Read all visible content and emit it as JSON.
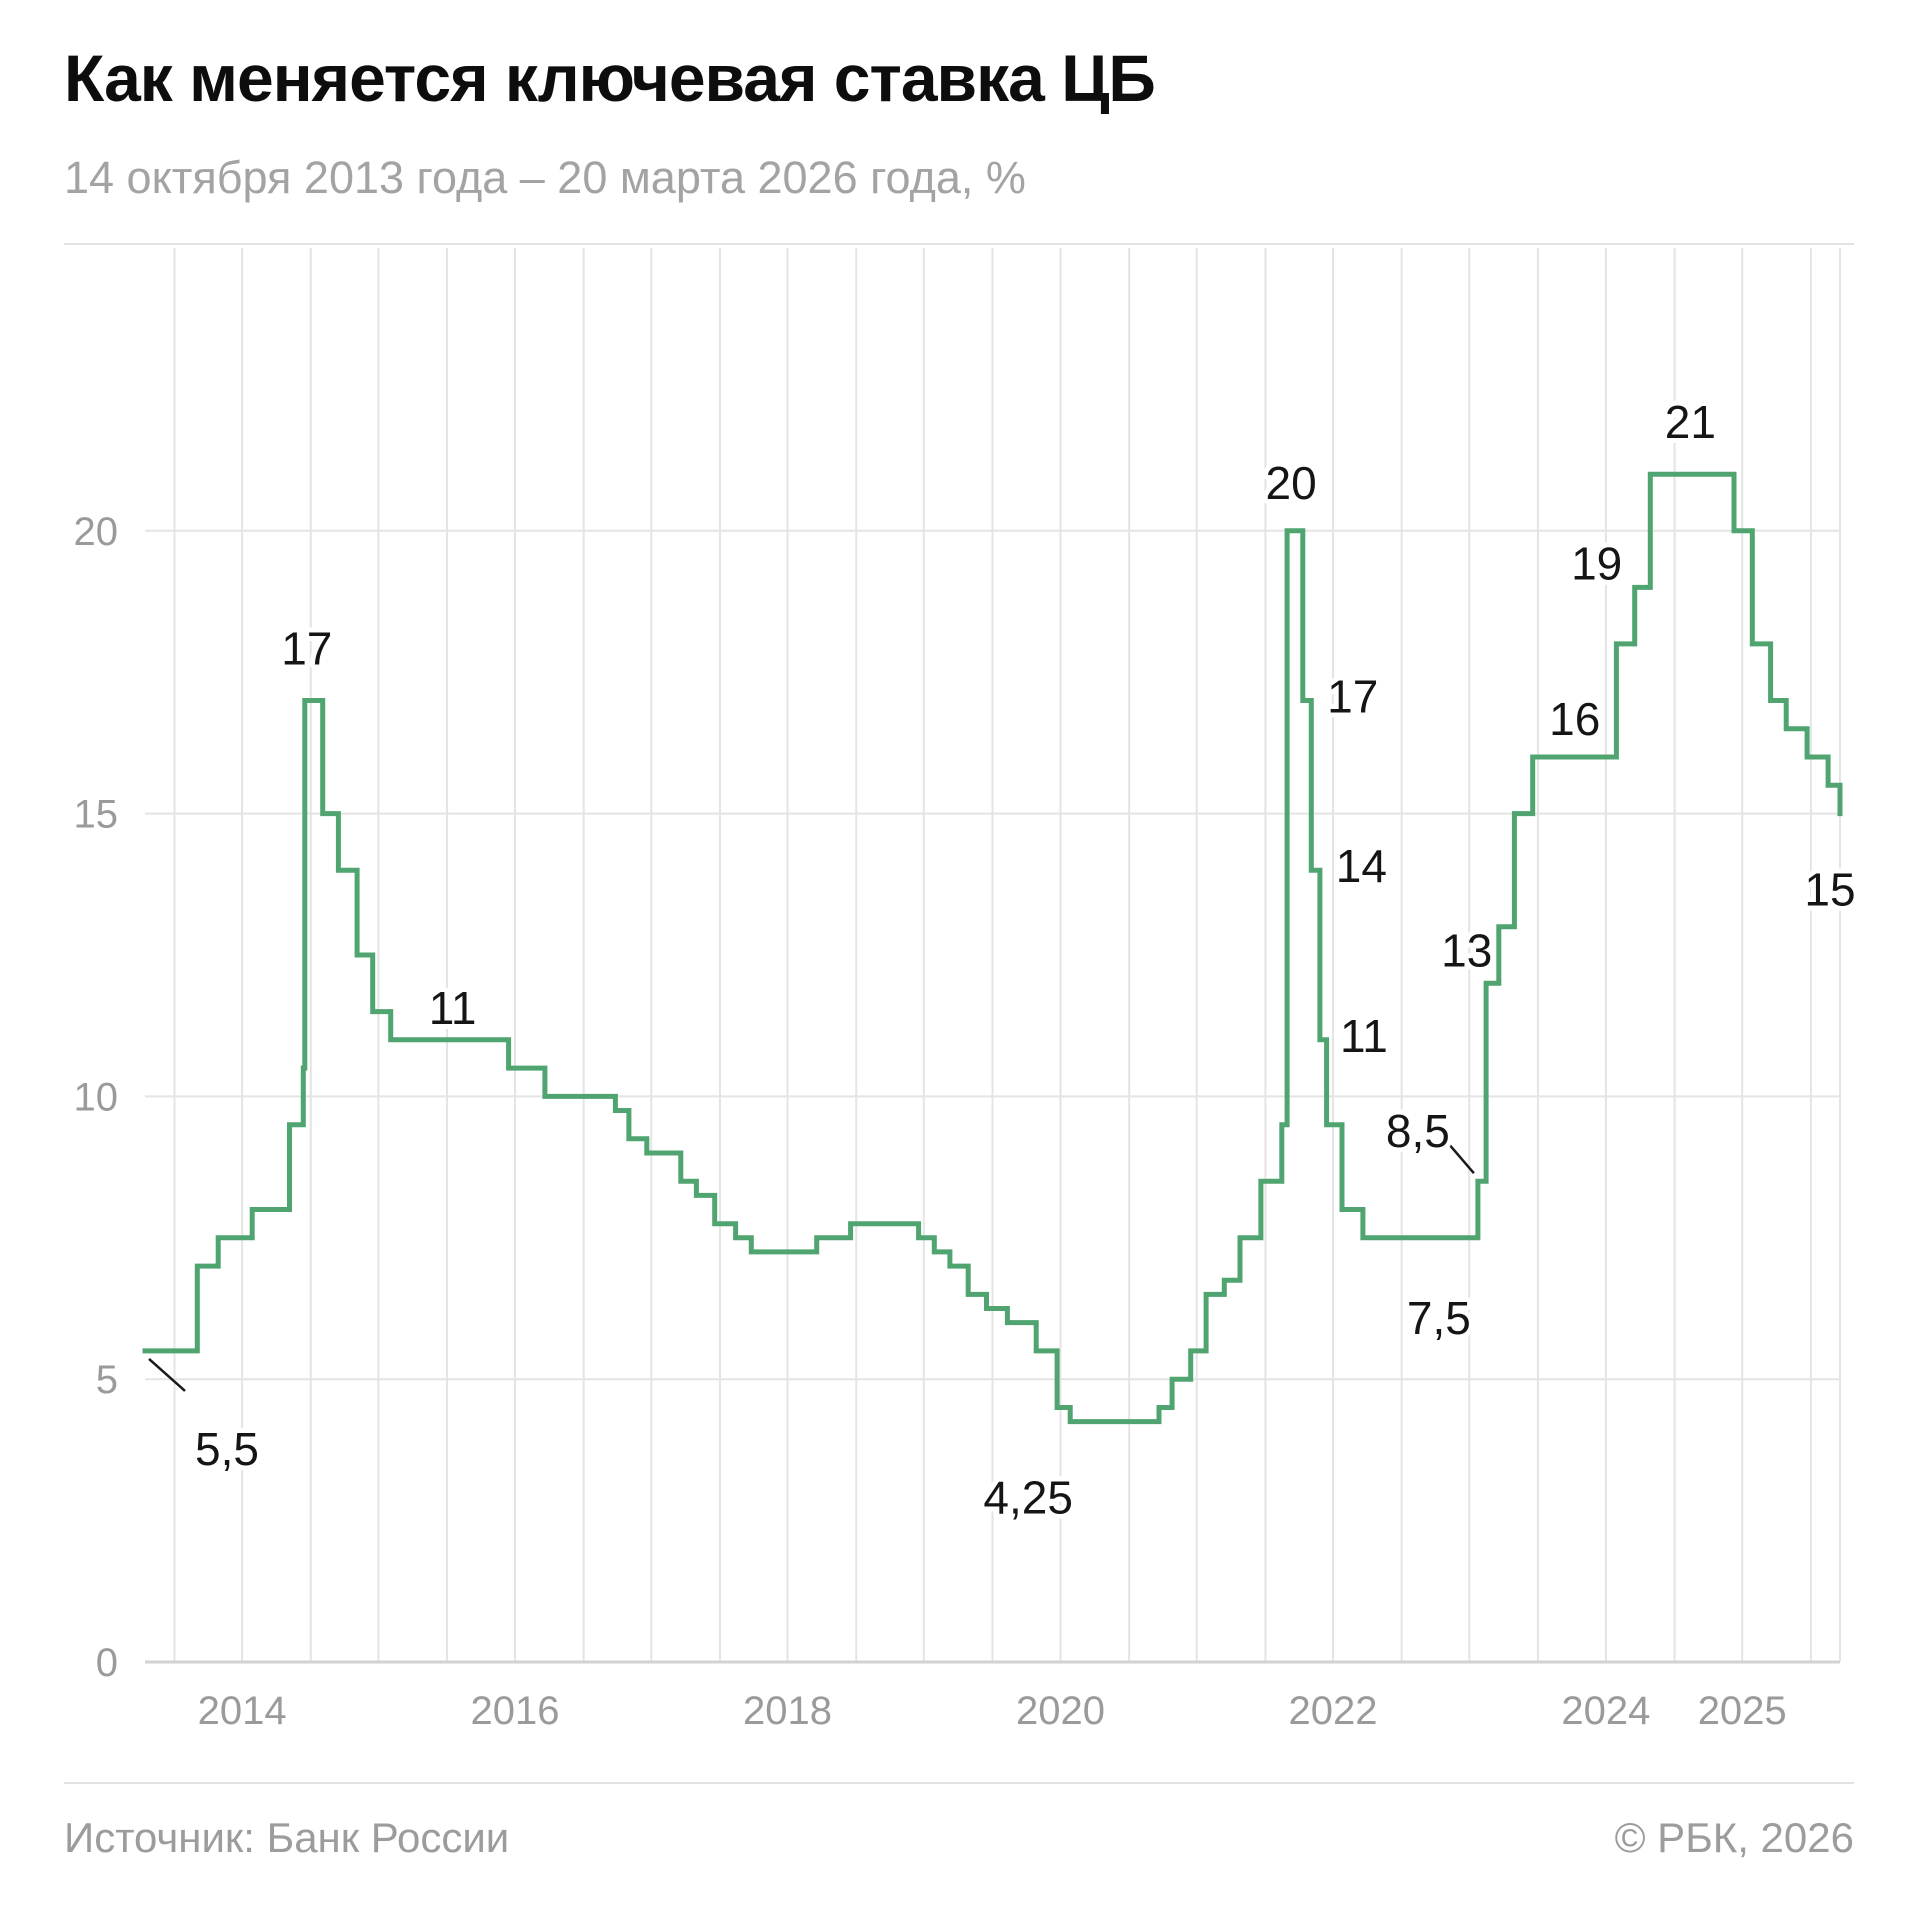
{
  "header": {
    "title": "Как меняется ключевая ставка ЦБ",
    "subtitle": "14 октября 2013 года – 20 марта 2026 года, %"
  },
  "footer": {
    "source": "Источник: Банк России",
    "copyright": "© РБК, 2026"
  },
  "colors": {
    "line": "#4fa470",
    "grid": "#e4e4e4",
    "tick": "#9a9a9a"
  },
  "chart_data": {
    "type": "line",
    "step": true,
    "title": "Как меняется ключевая ставка ЦБ",
    "subtitle": "14 октября 2013 года – 20 марта 2026 года, %",
    "xlabel": "",
    "ylabel": "",
    "ylim": [
      0,
      25
    ],
    "xlim": [
      "2013-10-14",
      "2026-03-20"
    ],
    "grid": true,
    "yticks": [
      0,
      5,
      10,
      15,
      20
    ],
    "ytick_labels": [
      "0",
      "5",
      "10",
      "15",
      "20"
    ],
    "xticks": [
      "2014",
      "2016",
      "2018",
      "2020",
      "2022",
      "2024",
      "2025"
    ],
    "series": [
      {
        "name": "",
        "color": "#4fa470",
        "points": [
          [
            "2013-10-14",
            5.5
          ],
          [
            "2014-03-03",
            7
          ],
          [
            "2014-04-28",
            7.5
          ],
          [
            "2014-07-28",
            8
          ],
          [
            "2014-11-05",
            9.5
          ],
          [
            "2014-12-12",
            10.5
          ],
          [
            "2014-12-16",
            17
          ],
          [
            "2015-02-02",
            15
          ],
          [
            "2015-03-16",
            14
          ],
          [
            "2015-05-05",
            12.5
          ],
          [
            "2015-06-16",
            11.5
          ],
          [
            "2015-08-03",
            11
          ],
          [
            "2016-06-14",
            10.5
          ],
          [
            "2016-09-19",
            10
          ],
          [
            "2017-03-27",
            9.75
          ],
          [
            "2017-05-02",
            9.25
          ],
          [
            "2017-06-19",
            9
          ],
          [
            "2017-09-18",
            8.5
          ],
          [
            "2017-10-30",
            8.25
          ],
          [
            "2017-12-18",
            7.75
          ],
          [
            "2018-02-12",
            7.5
          ],
          [
            "2018-03-26",
            7.25
          ],
          [
            "2018-09-17",
            7.5
          ],
          [
            "2018-12-17",
            7.75
          ],
          [
            "2019-06-17",
            7.5
          ],
          [
            "2019-07-29",
            7.25
          ],
          [
            "2019-09-09",
            7
          ],
          [
            "2019-10-28",
            6.5
          ],
          [
            "2019-12-16",
            6.25
          ],
          [
            "2020-02-10",
            6
          ],
          [
            "2020-04-27",
            5.5
          ],
          [
            "2020-06-22",
            4.5
          ],
          [
            "2020-07-27",
            4.25
          ],
          [
            "2021-03-22",
            4.5
          ],
          [
            "2021-04-26",
            5
          ],
          [
            "2021-06-15",
            5.5
          ],
          [
            "2021-07-26",
            6.5
          ],
          [
            "2021-09-13",
            6.75
          ],
          [
            "2021-10-25",
            7.5
          ],
          [
            "2021-12-20",
            8.5
          ],
          [
            "2022-02-14",
            9.5
          ],
          [
            "2022-02-28",
            20
          ],
          [
            "2022-04-11",
            17
          ],
          [
            "2022-05-04",
            14
          ],
          [
            "2022-05-27",
            11
          ],
          [
            "2022-06-14",
            9.5
          ],
          [
            "2022-07-25",
            8
          ],
          [
            "2022-09-19",
            7.5
          ],
          [
            "2023-07-24",
            8.5
          ],
          [
            "2023-08-15",
            12
          ],
          [
            "2023-09-18",
            13
          ],
          [
            "2023-10-30",
            15
          ],
          [
            "2023-12-18",
            16
          ],
          [
            "2024-07-29",
            18
          ],
          [
            "2024-09-16",
            19
          ],
          [
            "2024-10-28",
            21
          ],
          [
            "2025-06-09",
            20
          ],
          [
            "2025-07-28",
            18
          ],
          [
            "2025-09-15",
            17
          ],
          [
            "2025-10-27",
            16.5
          ],
          [
            "2025-12-22",
            16
          ],
          [
            "2026-02-16",
            15.5
          ],
          [
            "2026-03-20",
            15
          ]
        ]
      }
    ],
    "annotations": [
      {
        "text": "5,5",
        "date": "2013-10-14",
        "value": 5.5
      },
      {
        "text": "17",
        "date": "2014-12-16",
        "value": 17
      },
      {
        "text": "11",
        "date": "2015-08-03",
        "value": 11
      },
      {
        "text": "4,25",
        "date": "2020-07-27",
        "value": 4.25
      },
      {
        "text": "20",
        "date": "2022-02-28",
        "value": 20
      },
      {
        "text": "17",
        "date": "2022-04-11",
        "value": 17
      },
      {
        "text": "14",
        "date": "2022-05-04",
        "value": 14
      },
      {
        "text": "11",
        "date": "2022-05-27",
        "value": 11
      },
      {
        "text": "7,5",
        "date": "2022-09-19",
        "value": 7.5
      },
      {
        "text": "8,5",
        "date": "2023-07-24",
        "value": 8.5
      },
      {
        "text": "13",
        "date": "2023-09-18",
        "value": 13
      },
      {
        "text": "16",
        "date": "2023-12-18",
        "value": 16
      },
      {
        "text": "19",
        "date": "2024-09-16",
        "value": 19
      },
      {
        "text": "21",
        "date": "2024-10-28",
        "value": 21
      },
      {
        "text": "15",
        "date": "2026-03-20",
        "value": 15
      }
    ]
  }
}
